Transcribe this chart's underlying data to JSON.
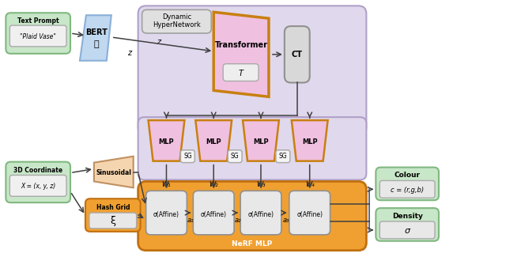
{
  "fig_width": 6.4,
  "fig_height": 3.25,
  "dpi": 100,
  "bg_color": "#ffffff",
  "colors": {
    "green_box": "#c8e6c8",
    "green_border": "#80b880",
    "blue_trap": "#c0d8f0",
    "blue_border": "#8ab0d8",
    "pink": "#f0c0e0",
    "orange_border": "#c88010",
    "gray_ct": "#d8d8d8",
    "gray_border": "#909090",
    "lavender_bg": "#e0d8ec",
    "lavender_border": "#b0a0c8",
    "nerf_orange": "#f0a030",
    "nerf_orange_border": "#c07010",
    "affine_bg": "#e8e8e8",
    "affine_border": "#909090",
    "sinusoidal_color": "#f5d5b0",
    "sinusoidal_border": "#c09060",
    "hashgrid_orange": "#f0a030",
    "hashgrid_border": "#c07010",
    "hashgrid_inner": "#e8e8e8",
    "output_green_bg": "#c8e6c8",
    "output_green_border": "#80b880",
    "output_inner_bg": "#e8e8e8",
    "arrow_color": "#404040"
  },
  "text": {
    "text_prompt_label": "Text Prompt",
    "text_prompt_val": "\"Plaid Vase\"",
    "bert_label": "BERT",
    "z_label": "z",
    "dynamic_label1": "Dynamic",
    "dynamic_label2": "HyperNetwork",
    "transformer_label": "Transformer",
    "transformer_t": "T",
    "ct_label": "CT",
    "mlp_label": "MLP",
    "sg_label": "SG",
    "coord_label": "3D Coordinate",
    "coord_val": "X = (x, y, z)",
    "sinusoidal_label": "Sinusoidal",
    "hashgrid_label": "Hash Grid",
    "hashgrid_xi": "ξ",
    "nerf_label": "NeRF MLP",
    "affine_label": "σ(Affine)",
    "colour_label": "Colour",
    "colour_val": "c = (r,g,b)",
    "density_label": "Density",
    "density_val": "σ",
    "w_labels": [
      "W₁",
      "W₂",
      "W₃",
      "W₄"
    ],
    "a_labels": [
      "a₁",
      "a₂",
      "a₃"
    ]
  }
}
